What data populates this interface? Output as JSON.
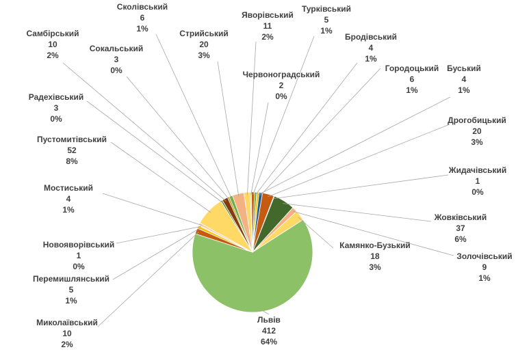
{
  "chart_data": {
    "type": "pie",
    "title": "",
    "slices": [
      {
        "name": "Бродівський",
        "value": 4,
        "percent": "1%",
        "color": "#70ad47"
      },
      {
        "name": "Буський",
        "value": 4,
        "percent": "1%",
        "color": "#ffc000"
      },
      {
        "name": "Городоцький",
        "value": 6,
        "percent": "1%",
        "color": "#255e91"
      },
      {
        "name": "Дрогобицький",
        "value": 20,
        "percent": "3%",
        "color": "#c55a11"
      },
      {
        "name": "Жидачівський",
        "value": 1,
        "percent": "0%",
        "color": "#9e480e"
      },
      {
        "name": "Жовківський",
        "value": 37,
        "percent": "6%",
        "color": "#43682b"
      },
      {
        "name": "Золочівський",
        "value": 9,
        "percent": "1%",
        "color": "#f4b183"
      },
      {
        "name": "Камянко-Бузький",
        "value": 18,
        "percent": "3%",
        "color": "#ffd966"
      },
      {
        "name": "Львів",
        "value": 412,
        "percent": "64%",
        "color": "#8cc168"
      },
      {
        "name": "Миколаївський",
        "value": 10,
        "percent": "2%",
        "color": "#c55a11"
      },
      {
        "name": "Перемишлянський",
        "value": 5,
        "percent": "1%",
        "color": "#ffc000"
      },
      {
        "name": "Новояворівський",
        "value": 1,
        "percent": "0%",
        "color": "#843c0c"
      },
      {
        "name": "Мостиський",
        "value": 4,
        "percent": "1%",
        "color": "#f8cbad"
      },
      {
        "name": "Пустомитівський",
        "value": 52,
        "percent": "8%",
        "color": "#ffd966"
      },
      {
        "name": "Радехівський",
        "value": 3,
        "percent": "0%",
        "color": "#548235"
      },
      {
        "name": "Самбірський",
        "value": 10,
        "percent": "2%",
        "color": "#843c0c"
      },
      {
        "name": "Сокальський",
        "value": 3,
        "percent": "0%",
        "color": "#bf9000"
      },
      {
        "name": "Сколівський",
        "value": 6,
        "percent": "1%",
        "color": "#70ad47"
      },
      {
        "name": "Стрийський",
        "value": 20,
        "percent": "3%",
        "color": "#f4b183"
      },
      {
        "name": "Яворівський",
        "value": 11,
        "percent": "2%",
        "color": "#ffd966"
      },
      {
        "name": "Червоноградський",
        "value": 2,
        "percent": "0%",
        "color": "#a9d18e"
      },
      {
        "name": "Турківський",
        "value": 5,
        "percent": "1%",
        "color": "#c55a11"
      }
    ],
    "legend": "none",
    "labels": "outside-with-leader-lines"
  }
}
